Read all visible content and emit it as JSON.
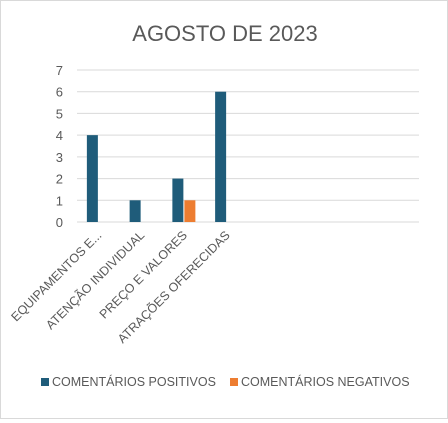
{
  "chart_data": {
    "type": "bar",
    "title": "AGOSTO DE 2023",
    "xlabel": "",
    "ylabel": "",
    "ylim": [
      0,
      7
    ],
    "yticks": [
      0,
      1,
      2,
      3,
      4,
      5,
      6,
      7
    ],
    "grid": true,
    "legend_position": "bottom",
    "categories": [
      "EQUIPAMENTOS E...",
      "ATENÇÃO INDIVIDUAL",
      "PREÇO E VALORES",
      "ATRAÇÕES OFERECIDAS"
    ],
    "series": [
      {
        "name": "COMENTÁRIOS POSITIVOS",
        "color": "#1f5c7a",
        "values": [
          4,
          1,
          2,
          6
        ]
      },
      {
        "name": "COMENTÁRIOS NEGATIVOS",
        "color": "#ed7d31",
        "values": [
          0,
          0,
          1,
          0
        ]
      }
    ]
  }
}
